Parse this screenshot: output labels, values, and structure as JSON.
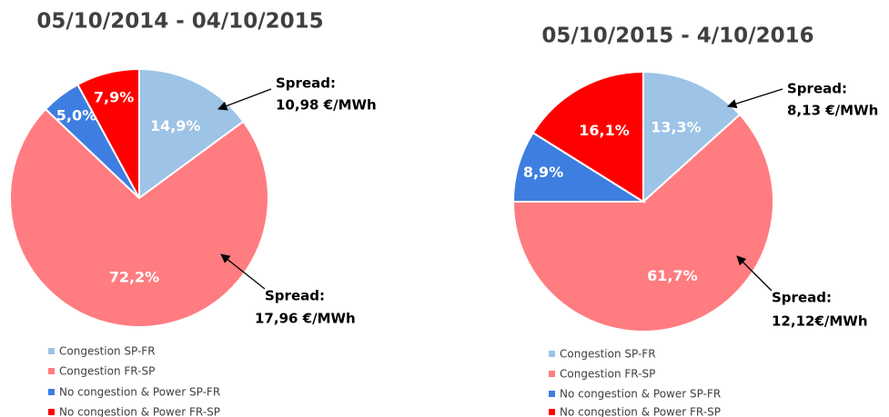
{
  "chart_data": [
    {
      "type": "pie",
      "title": "05/10/2014 - 04/10/2015",
      "categories": [
        "Congestion SP-FR",
        "Congestion FR-SP",
        "No congestion & Power SP-FR",
        "No congestion & Power FR-SP"
      ],
      "values": [
        14.9,
        72.2,
        5.0,
        7.9
      ],
      "value_labels": [
        "14,9%",
        "72,2%",
        "5,0%",
        "7,9%"
      ],
      "colors": [
        "#9dc3e6",
        "#ff7c80",
        "#3e7ee0",
        "#ff0000"
      ],
      "annotations": [
        "Spread:",
        "10,98 €/MWh",
        "Spread:",
        "17,96 €/MWh"
      ]
    },
    {
      "type": "pie",
      "title": "05/10/2015 - 4/10/2016",
      "categories": [
        "Congestion SP-FR",
        "Congestion FR-SP",
        "No congestion & Power SP-FR",
        "No congestion & Power FR-SP"
      ],
      "values": [
        13.3,
        61.7,
        8.9,
        16.1
      ],
      "value_labels": [
        "13,3%",
        "61,7%",
        "8,9%",
        "16,1%"
      ],
      "colors": [
        "#9dc3e6",
        "#ff7c80",
        "#3e7ee0",
        "#ff0000"
      ],
      "annotations": [
        "Spread:",
        "8,13 €/MWh",
        "Spread:",
        "12,12€/MWh"
      ]
    }
  ]
}
